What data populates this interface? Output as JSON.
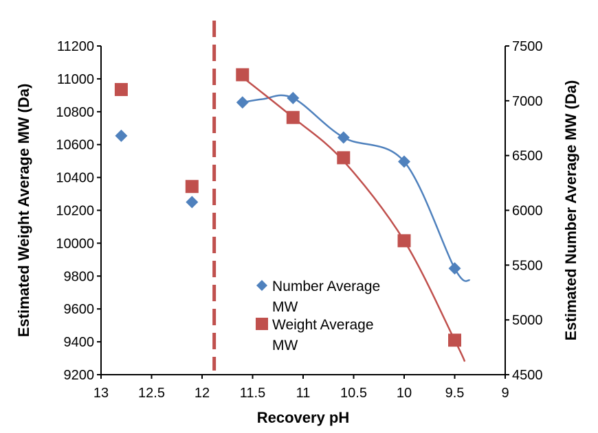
{
  "chart_data": {
    "type": "scatter",
    "xlabel": "Recovery pH",
    "ylabel_left": "Estimated Weight Average MW (Da)",
    "ylabel_right": "Estimated Number Average MW (Da)",
    "xlim": [
      13,
      9
    ],
    "xticks": [
      13,
      12.5,
      12,
      11.5,
      11,
      10.5,
      10,
      9.5,
      9
    ],
    "xtick_labels": [
      "13",
      "12.5",
      "12",
      "11.5",
      "11",
      "10.5",
      "10",
      "9.5",
      "9"
    ],
    "ylim_left": [
      9200,
      11200
    ],
    "yticks_left": [
      9200,
      9400,
      9600,
      9800,
      10000,
      10200,
      10400,
      10600,
      10800,
      11000,
      11200
    ],
    "ylim_right": [
      4500,
      7500
    ],
    "yticks_right": [
      4500,
      5000,
      5500,
      6000,
      6500,
      7000,
      7500
    ],
    "grid": false,
    "legend_position": "lower-center",
    "vertical_reference_line": {
      "x": 11.88,
      "style": "dashed",
      "color": "#C0504D"
    },
    "series": [
      {
        "name": "Number Average MW",
        "legend_lines": [
          "Number Average",
          "MW"
        ],
        "axis": "right",
        "marker": "diamond",
        "color": "#4F81BD",
        "x": [
          12.8,
          12.1,
          11.6,
          11.1,
          10.6,
          10.0,
          9.5
        ],
        "y": [
          6680,
          6075,
          6985,
          7025,
          6665,
          6445,
          5470
        ],
        "trendline": {
          "type": "polynomial",
          "x_from": 11.6,
          "x_to": 9.35,
          "points": [
            [
              11.6,
              6985
            ],
            [
              11.4,
              7015
            ],
            [
              11.1,
              7025
            ],
            [
              10.6,
              6665
            ],
            [
              10.0,
              6445
            ],
            [
              9.5,
              5470
            ],
            [
              9.35,
              5360
            ]
          ]
        }
      },
      {
        "name": "Weight Average MW",
        "legend_lines": [
          "Weight Average",
          "MW"
        ],
        "axis": "left",
        "marker": "square",
        "color": "#C0504D",
        "x": [
          12.8,
          12.1,
          11.6,
          11.1,
          10.6,
          10.0,
          9.5
        ],
        "y": [
          10935,
          10345,
          11025,
          10765,
          10520,
          10015,
          9410
        ],
        "trendline": {
          "type": "polynomial",
          "x_from": 11.6,
          "x_to": 9.4,
          "points": [
            [
              11.6,
              11010
            ],
            [
              11.1,
              10765
            ],
            [
              10.6,
              10500
            ],
            [
              10.0,
              10015
            ],
            [
              9.5,
              9410
            ],
            [
              9.4,
              9280
            ]
          ]
        }
      }
    ]
  }
}
